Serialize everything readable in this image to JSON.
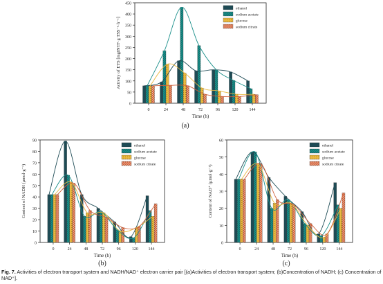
{
  "palette": {
    "ethanol": "#1e4b55",
    "sodium_acetate": "#1a8f8a",
    "glucose": "#e9b940",
    "sodium_citrate": "#d0603a"
  },
  "chart_data": [
    {
      "type": "bar",
      "panel": "(a)",
      "xlabel": "Time (h)",
      "ylabel": "Activity of ETS [mgINTF·g TSS⁻¹·h⁻¹]",
      "categories": [
        "0",
        "24",
        "48",
        "72",
        "96",
        "120",
        "144"
      ],
      "ylim": [
        0,
        450
      ],
      "yticks": [
        0,
        50,
        100,
        150,
        200,
        250,
        300,
        350,
        400,
        450
      ],
      "legend": "top-right",
      "series": [
        {
          "name": "ethanol",
          "values": [
            78,
            95,
            190,
            145,
            150,
            140,
            100
          ]
        },
        {
          "name": "sodium acetate",
          "values": [
            78,
            235,
            430,
            258,
            150,
            102,
            65
          ]
        },
        {
          "name": "glucose",
          "values": [
            78,
            175,
            135,
            68,
            55,
            40,
            40
          ]
        },
        {
          "name": "sodium citrate",
          "values": [
            78,
            80,
            78,
            40,
            30,
            30,
            38
          ]
        }
      ]
    },
    {
      "type": "bar",
      "panel": "(b)",
      "xlabel": "Time (h)",
      "ylabel": "Content of NADH (μmol·g⁻¹)",
      "categories": [
        "0",
        "24",
        "48",
        "72",
        "96",
        "120",
        "144"
      ],
      "ylim": [
        0,
        90
      ],
      "yticks": [
        0,
        10,
        20,
        30,
        40,
        50,
        60,
        70,
        80,
        90
      ],
      "legend": "top-right",
      "series": [
        {
          "name": "ethanol",
          "values": [
            42,
            89,
            42,
            30,
            18,
            5,
            41
          ]
        },
        {
          "name": "sodium acetate",
          "values": [
            42,
            59,
            23,
            27,
            11,
            4,
            28
          ]
        },
        {
          "name": "glucose",
          "values": [
            42,
            53,
            26,
            26,
            10,
            13,
            23
          ]
        },
        {
          "name": "sodium citrate",
          "values": [
            42,
            52,
            28,
            22,
            13,
            14,
            34
          ]
        }
      ]
    },
    {
      "type": "bar",
      "panel": "(c)",
      "xlabel": "Time (h)",
      "ylabel": "Content of NAD⁺ (μmol·g⁻¹)",
      "categories": [
        "0",
        "24",
        "48",
        "72",
        "96",
        "120",
        "144"
      ],
      "ylim": [
        0,
        60
      ],
      "yticks": [
        0,
        10,
        20,
        30,
        40,
        50,
        60
      ],
      "legend": "top-right",
      "series": [
        {
          "name": "ethanol",
          "values": [
            37,
            53,
            38,
            27,
            18,
            5,
            35
          ]
        },
        {
          "name": "sodium acetate",
          "values": [
            37,
            53,
            20,
            25,
            11,
            4,
            22
          ]
        },
        {
          "name": "glucose",
          "values": [
            37,
            46,
            23,
            23,
            10,
            3,
            20
          ]
        },
        {
          "name": "sodium citrate",
          "values": [
            37,
            46,
            25,
            22,
            11,
            5,
            29
          ]
        }
      ]
    }
  ],
  "caption": {
    "label": "Fig. 7.",
    "text": "Activities of electron transport system and NADH/NAD⁺ electron carrier pair [(a)Activities of electron transport system; (b)Concentration of NADH; (c) Concentration of NAD⁺]."
  }
}
